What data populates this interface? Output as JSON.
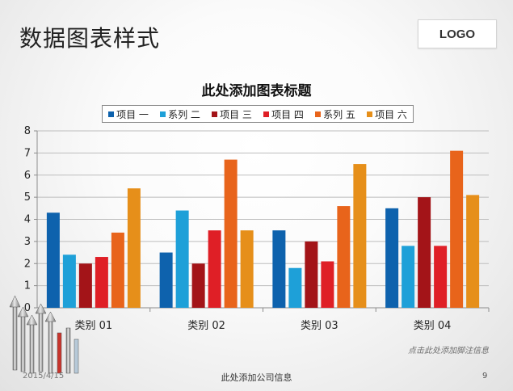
{
  "slide": {
    "title": "数据图表样式",
    "logo": "LOGO",
    "footnote": "点击此处添加脚注信息",
    "date": "2015/4/15",
    "company": "此处添加公司信息",
    "page_number": "9"
  },
  "chart_data": {
    "type": "bar",
    "title": "此处添加图表标题",
    "categories": [
      "类别 01",
      "类别 02",
      "类别 03",
      "类别 04"
    ],
    "ylim": [
      0,
      8
    ],
    "yticks": [
      0,
      1,
      2,
      3,
      4,
      5,
      6,
      7,
      8
    ],
    "grid": true,
    "legend_position": "top",
    "series": [
      {
        "name": "项目 一",
        "color": "#0e62ad",
        "values": [
          4.3,
          2.5,
          3.5,
          4.5
        ]
      },
      {
        "name": "系列 二",
        "color": "#1ea0d8",
        "values": [
          2.4,
          4.4,
          1.8,
          2.8
        ]
      },
      {
        "name": "项目 三",
        "color": "#a31418",
        "values": [
          2.0,
          2.0,
          3.0,
          5.0
        ]
      },
      {
        "name": "项目 四",
        "color": "#df1f26",
        "values": [
          2.3,
          3.5,
          2.1,
          2.8
        ]
      },
      {
        "name": "系列 五",
        "color": "#e8641b",
        "values": [
          3.4,
          6.7,
          4.6,
          7.1
        ]
      },
      {
        "name": "项目 六",
        "color": "#e68f1a",
        "values": [
          5.4,
          3.5,
          6.5,
          5.1
        ]
      }
    ]
  }
}
